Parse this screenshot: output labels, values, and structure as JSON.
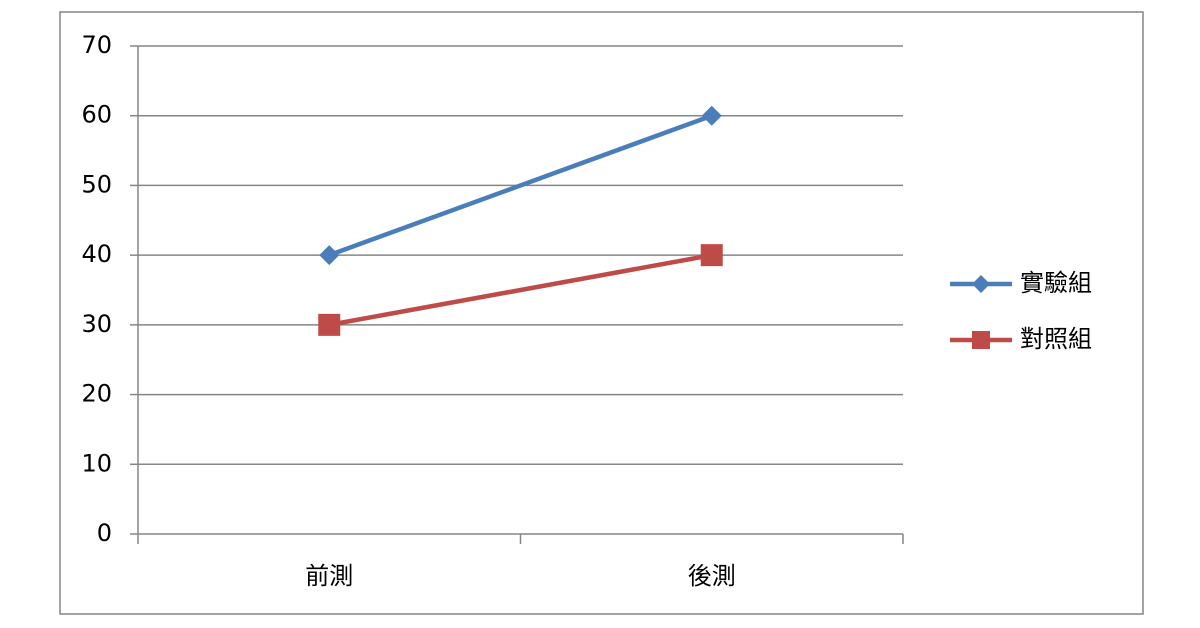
{
  "chart_data": {
    "type": "line",
    "categories": [
      "前測",
      "後測"
    ],
    "series": [
      {
        "name": "實驗組",
        "color": "#4a7ebb",
        "marker": "diamond",
        "values": [
          40,
          60
        ]
      },
      {
        "name": "對照組",
        "color": "#be4b48",
        "marker": "square",
        "values": [
          30,
          40
        ]
      }
    ],
    "ylim": [
      0,
      70
    ],
    "yticks": [
      0,
      10,
      20,
      30,
      40,
      50,
      60,
      70
    ],
    "grid": true,
    "legend": "right"
  }
}
